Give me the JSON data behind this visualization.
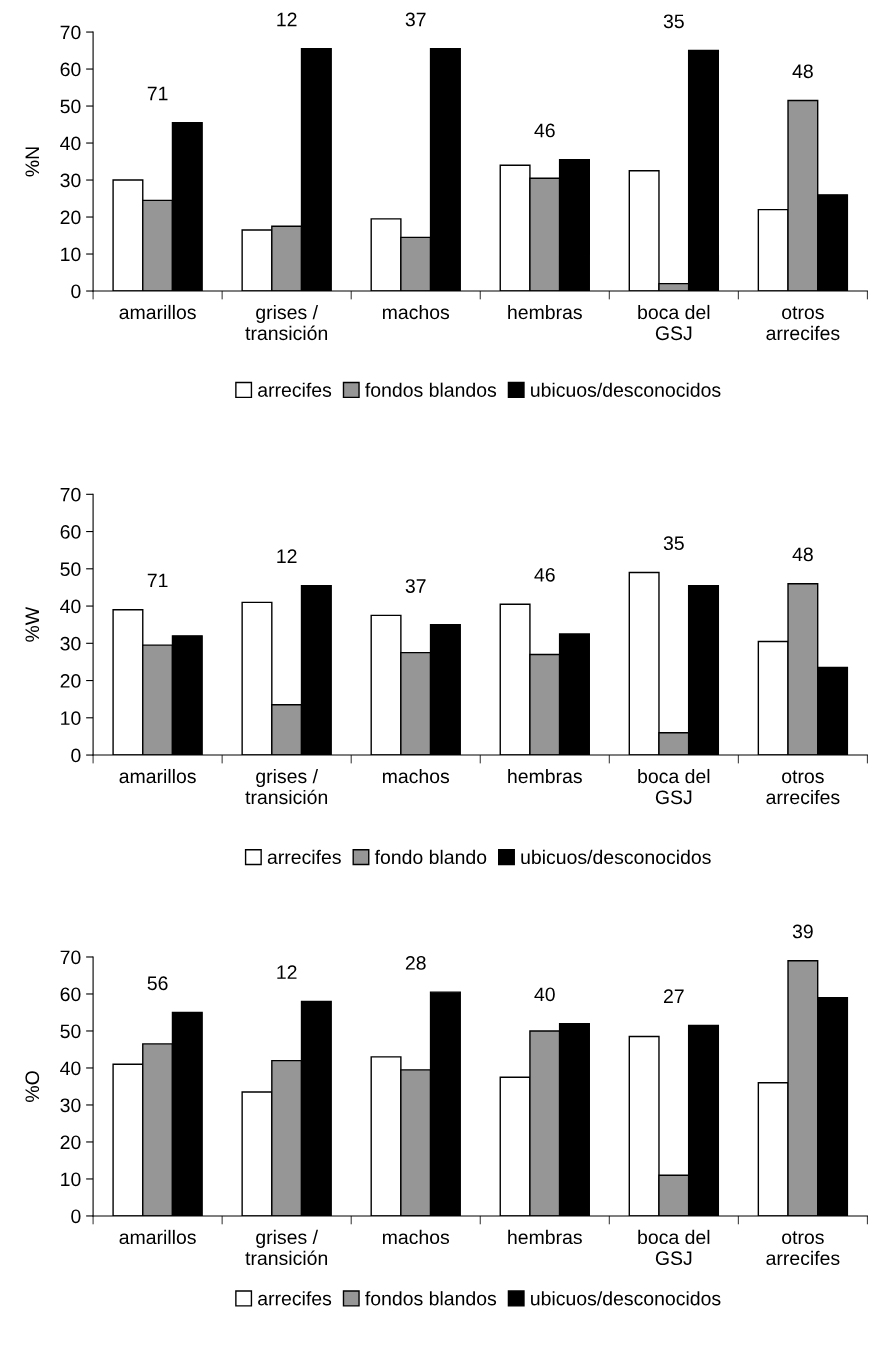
{
  "chart_data": [
    {
      "type": "bar",
      "ylabel": "%N",
      "categories": [
        "amarillos",
        "grises /\ntransición",
        "machos",
        "hembras",
        "boca del\nGSJ",
        "otros\narrecifes"
      ],
      "ylim": [
        0,
        70
      ],
      "yticks": [
        0,
        10,
        20,
        30,
        40,
        50,
        60,
        70
      ],
      "legend": "bottom",
      "grid": false,
      "series": [
        {
          "name": "arrecifes",
          "color": "#ffffff",
          "values": [
            30,
            16.5,
            19.5,
            34,
            32.5,
            22
          ]
        },
        {
          "name": "fondos blandos",
          "color": "#969696",
          "values": [
            24.5,
            17.5,
            14.5,
            30.5,
            2,
            51.5
          ]
        },
        {
          "name": "ubicuos/desconocidos",
          "color": "#000000",
          "values": [
            45.5,
            65.5,
            65.5,
            35.5,
            65,
            26
          ]
        }
      ],
      "annotations": [
        "71",
        "12",
        "37",
        "46",
        "35",
        "48"
      ]
    },
    {
      "type": "bar",
      "ylabel": "%W",
      "categories": [
        "amarillos",
        "grises /\ntransición",
        "machos",
        "hembras",
        "boca del\nGSJ",
        "otros\narrecifes"
      ],
      "ylim": [
        0,
        70
      ],
      "yticks": [
        0,
        10,
        20,
        30,
        40,
        50,
        60,
        70
      ],
      "legend": "bottom",
      "grid": false,
      "series": [
        {
          "name": "arrecifes",
          "color": "#ffffff",
          "values": [
            39,
            41,
            37.5,
            40.5,
            49,
            30.5
          ]
        },
        {
          "name": "fondo blando",
          "color": "#969696",
          "values": [
            29.5,
            13.5,
            27.5,
            27,
            6,
            46
          ]
        },
        {
          "name": "ubicuos/desconocidos",
          "color": "#000000",
          "values": [
            32,
            45.5,
            35,
            32.5,
            45.5,
            23.5
          ]
        }
      ],
      "annotations": [
        "71",
        "12",
        "37",
        "46",
        "35",
        "48"
      ]
    },
    {
      "type": "bar",
      "ylabel": "%O",
      "categories": [
        "amarillos",
        "grises /\ntransición",
        "machos",
        "hembras",
        "boca del\nGSJ",
        "otros\narrecifes"
      ],
      "ylim": [
        0,
        70
      ],
      "yticks": [
        0,
        10,
        20,
        30,
        40,
        50,
        60,
        70
      ],
      "legend": "bottom",
      "grid": false,
      "series": [
        {
          "name": "arrecifes",
          "color": "#ffffff",
          "values": [
            41,
            33.5,
            43,
            37.5,
            48.5,
            36
          ]
        },
        {
          "name": "fondos blandos",
          "color": "#969696",
          "values": [
            46.5,
            42,
            39.5,
            50,
            11,
            69
          ]
        },
        {
          "name": "ubicuos/desconocidos",
          "color": "#000000",
          "values": [
            55,
            58,
            60.5,
            52,
            51.5,
            59
          ]
        }
      ],
      "annotations": [
        "56",
        "12",
        "28",
        "40",
        "27",
        "39"
      ]
    }
  ]
}
